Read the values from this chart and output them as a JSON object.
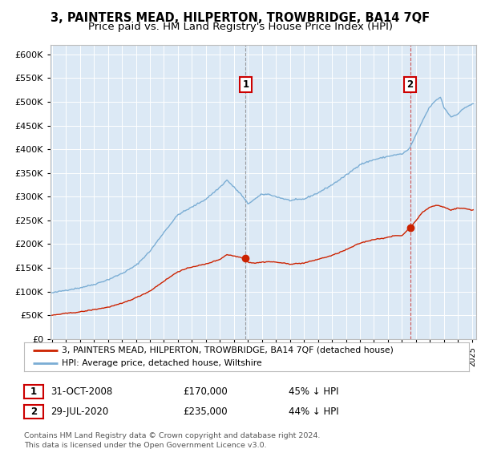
{
  "title": "3, PAINTERS MEAD, HILPERTON, TROWBRIDGE, BA14 7QF",
  "subtitle": "Price paid vs. HM Land Registry's House Price Index (HPI)",
  "title_fontsize": 10.5,
  "subtitle_fontsize": 9.5,
  "background_color": "#ffffff",
  "plot_bg_color": "#dce9f5",
  "grid_color": "#ffffff",
  "ylim": [
    0,
    620000
  ],
  "yticks": [
    0,
    50000,
    100000,
    150000,
    200000,
    250000,
    300000,
    350000,
    400000,
    450000,
    500000,
    550000,
    600000
  ],
  "ytick_labels": [
    "£0",
    "£50K",
    "£100K",
    "£150K",
    "£200K",
    "£250K",
    "£300K",
    "£350K",
    "£400K",
    "£450K",
    "£500K",
    "£550K",
    "£600K"
  ],
  "hpi_color": "#7aadd4",
  "price_color": "#cc2200",
  "sale1_x": 2008.833,
  "sale1_y": 170000,
  "sale2_x": 2020.583,
  "sale2_y": 235000,
  "marker_box_color": "#cc0000",
  "dash1_color": "#888888",
  "dash2_color": "#cc4444",
  "legend_line1": "3, PAINTERS MEAD, HILPERTON, TROWBRIDGE, BA14 7QF (detached house)",
  "legend_line2": "HPI: Average price, detached house, Wiltshire",
  "footer": "Contains HM Land Registry data © Crown copyright and database right 2024.\nThis data is licensed under the Open Government Licence v3.0.",
  "xlim_start": 1994.9,
  "xlim_end": 2025.3
}
